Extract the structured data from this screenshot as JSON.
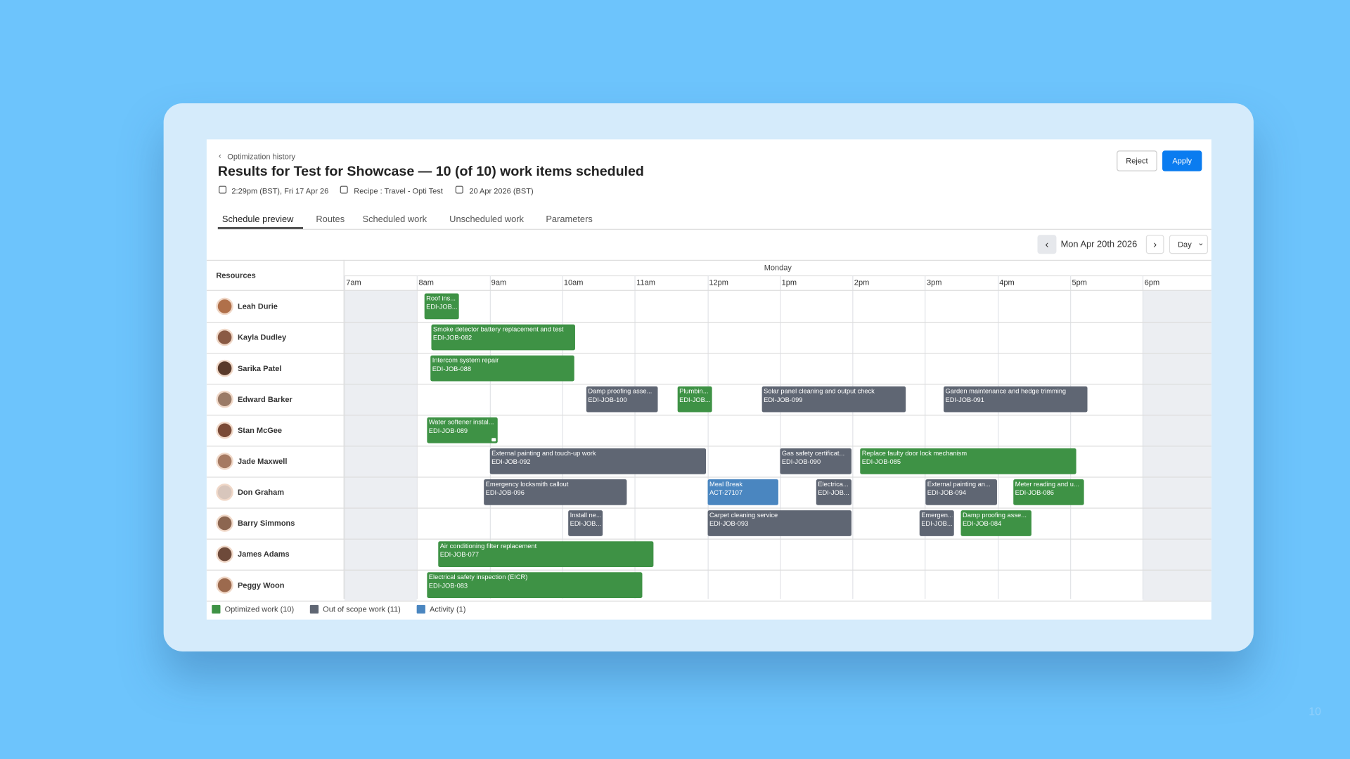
{
  "header": {
    "back_link": "Optimization history",
    "title": "Results for Test for Showcase — 10 (of 10) work items scheduled",
    "meta": [
      "2:29pm (BST), Fri 17 Apr 26",
      "Recipe : Travel - Opti Test",
      "20 Apr 2026 (BST)"
    ]
  },
  "actions": [
    "Reject",
    "Apply"
  ],
  "tabs": [
    "Schedule preview",
    "Routes",
    "Scheduled work",
    "Unscheduled work",
    "Parameters"
  ],
  "date_nav": {
    "date": "Mon Apr 20th 2026",
    "view": "Day"
  },
  "schedule": {
    "resources_header": "Resources",
    "day": "Monday",
    "hours": [
      "7am",
      "8am",
      "9am",
      "10am",
      "11am",
      "12pm",
      "1pm",
      "2pm",
      "3pm",
      "4pm",
      "5pm",
      "6pm"
    ],
    "rows": [
      {
        "name": "Leah Durie",
        "jobs": [
          {
            "title": "Roof ins...",
            "code": "EDI-JOB...",
            "color": "#3e9245"
          }
        ]
      },
      {
        "name": "Kayla Dudley",
        "jobs": [
          {
            "title": "Smoke detector battery replacement and test",
            "code": "EDI-JOB-082",
            "color": "#3e9245"
          }
        ]
      },
      {
        "name": "Sarika Patel",
        "jobs": [
          {
            "title": "Intercom system repair",
            "code": "EDI-JOB-088",
            "color": "#3e9245"
          }
        ]
      },
      {
        "name": "Edward Barker",
        "jobs": [
          {
            "title": "Damp proofing asse...",
            "code": "EDI-JOB-100",
            "color": "#5f6673"
          },
          {
            "title": "Plumbin...",
            "code": "EDI-JOB...",
            "color": "#3e9245"
          },
          {
            "title": "Solar panel cleaning and output check",
            "code": "EDI-JOB-099",
            "color": "#5f6673"
          },
          {
            "title": "Garden maintenance and hedge trimming",
            "code": "EDI-JOB-091",
            "color": "#5f6673"
          }
        ]
      },
      {
        "name": "Stan McGee",
        "jobs": [
          {
            "title": "Water softener instal...",
            "code": "EDI-JOB-089",
            "color": "#3e9245"
          }
        ]
      },
      {
        "name": "Jade Maxwell",
        "jobs": [
          {
            "title": "External painting and touch-up work",
            "code": "EDI-JOB-092",
            "color": "#5f6673"
          },
          {
            "title": "Gas safety certificat...",
            "code": "EDI-JOB-090",
            "color": "#5f6673"
          },
          {
            "title": "Replace faulty door lock mechanism",
            "code": "EDI-JOB-085",
            "color": "#3e9245"
          }
        ]
      },
      {
        "name": "Don Graham",
        "jobs": [
          {
            "title": "Emergency locksmith callout",
            "code": "EDI-JOB-096",
            "color": "#5f6673"
          },
          {
            "title": "Meal Break",
            "code": "ACT-27107",
            "color": "#4a86c0"
          },
          {
            "title": "Electrica...",
            "code": "EDI-JOB...",
            "color": "#5f6673"
          },
          {
            "title": "External painting an...",
            "code": "EDI-JOB-094",
            "color": "#5f6673"
          },
          {
            "title": "Meter reading and u...",
            "code": "EDI-JOB-086",
            "color": "#3e9245"
          }
        ]
      },
      {
        "name": "Barry Simmons",
        "jobs": [
          {
            "title": "Install ne...",
            "code": "EDI-JOB...",
            "color": "#5f6673"
          },
          {
            "title": "Carpet cleaning service",
            "code": "EDI-JOB-093",
            "color": "#5f6673"
          },
          {
            "title": "Emergen...",
            "code": "EDI-JOB...",
            "color": "#5f6673"
          },
          {
            "title": "Damp proofing asse...",
            "code": "EDI-JOB-084",
            "color": "#3e9245"
          }
        ]
      },
      {
        "name": "James Adams",
        "jobs": [
          {
            "title": "Air conditioning filter replacement",
            "code": "EDI-JOB-077",
            "color": "#3e9245"
          }
        ]
      },
      {
        "name": "Peggy Woon",
        "jobs": [
          {
            "title": "Electrical safety inspection (EICR)",
            "code": "EDI-JOB-083",
            "color": "#3e9245"
          }
        ]
      }
    ]
  },
  "legend": [
    {
      "label": "Optimized work (10)",
      "color": "#3e9245"
    },
    {
      "label": "Out of scope work (11)",
      "color": "#5f6673"
    },
    {
      "label": "Activity (1)",
      "color": "#4a86c0"
    }
  ],
  "page_number": "10"
}
